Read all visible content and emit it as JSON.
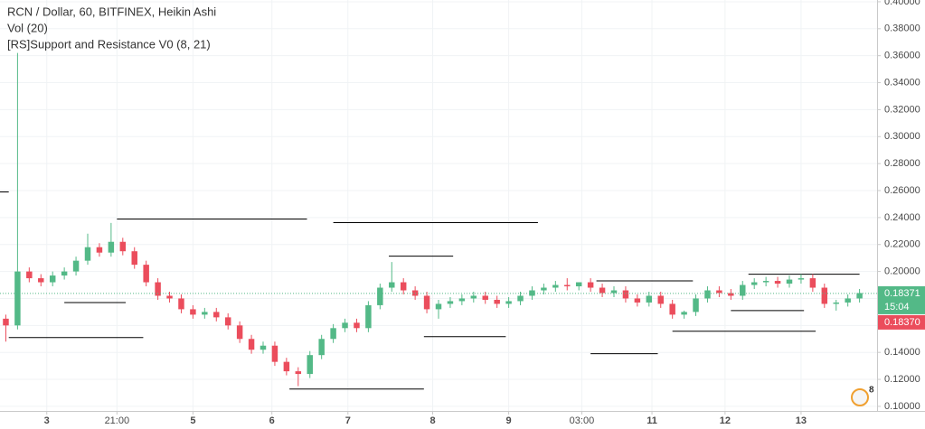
{
  "chart_data": {
    "type": "candlestick",
    "title": "RCN / Dollar, 60, BITFINEX, Heikin Ashi",
    "indicators": [
      "Vol (20)",
      "[RS]Support and Resistance V0 (8, 21)"
    ],
    "x": [
      2,
      6,
      10,
      14,
      18,
      22,
      26,
      30,
      34,
      38,
      42,
      46,
      50,
      54,
      58,
      62,
      66,
      70,
      74,
      78,
      82,
      86,
      90,
      94,
      98,
      102,
      106,
      110,
      114,
      118,
      122,
      126,
      130,
      134,
      138,
      142,
      146,
      150,
      154,
      158,
      162,
      166,
      170,
      174,
      178,
      182,
      186,
      190,
      194,
      198,
      202,
      206,
      210,
      214,
      218,
      222,
      226,
      230,
      234,
      238,
      242,
      246,
      250,
      254,
      258,
      262,
      266,
      270,
      274,
      278,
      282,
      286,
      290,
      294
    ],
    "open": [
      0.165,
      0.16,
      0.2,
      0.195,
      0.192,
      0.197,
      0.2,
      0.208,
      0.218,
      0.214,
      0.222,
      0.215,
      0.205,
      0.192,
      0.182,
      0.18,
      0.172,
      0.168,
      0.17,
      0.166,
      0.16,
      0.15,
      0.142,
      0.145,
      0.133,
      0.126,
      0.124,
      0.138,
      0.15,
      0.158,
      0.162,
      0.158,
      0.175,
      0.188,
      0.192,
      0.186,
      0.182,
      0.172,
      0.176,
      0.178,
      0.18,
      0.182,
      0.179,
      0.176,
      0.178,
      0.182,
      0.186,
      0.188,
      0.19,
      0.189,
      0.192,
      0.188,
      0.184,
      0.186,
      0.18,
      0.177,
      0.182,
      0.176,
      0.168,
      0.17,
      0.18,
      0.186,
      0.184,
      0.182,
      0.19,
      0.192,
      0.193,
      0.191,
      0.194,
      0.195,
      0.188,
      0.176,
      0.177,
      0.18
    ],
    "high": [
      0.168,
      0.362,
      0.203,
      0.198,
      0.2,
      0.203,
      0.211,
      0.228,
      0.221,
      0.236,
      0.225,
      0.218,
      0.208,
      0.195,
      0.185,
      0.183,
      0.175,
      0.173,
      0.173,
      0.169,
      0.163,
      0.153,
      0.148,
      0.148,
      0.136,
      0.129,
      0.141,
      0.153,
      0.161,
      0.165,
      0.165,
      0.178,
      0.191,
      0.207,
      0.195,
      0.189,
      0.185,
      0.179,
      0.181,
      0.183,
      0.185,
      0.185,
      0.182,
      0.181,
      0.185,
      0.189,
      0.191,
      0.193,
      0.195,
      0.192,
      0.195,
      0.191,
      0.189,
      0.189,
      0.183,
      0.185,
      0.185,
      0.179,
      0.171,
      0.183,
      0.189,
      0.189,
      0.187,
      0.193,
      0.195,
      0.196,
      0.196,
      0.197,
      0.198,
      0.198,
      0.191,
      0.179,
      0.183,
      0.187
    ],
    "low": [
      0.148,
      0.157,
      0.192,
      0.189,
      0.189,
      0.194,
      0.197,
      0.205,
      0.211,
      0.211,
      0.212,
      0.202,
      0.189,
      0.179,
      0.177,
      0.169,
      0.165,
      0.165,
      0.163,
      0.157,
      0.147,
      0.139,
      0.139,
      0.13,
      0.123,
      0.115,
      0.121,
      0.135,
      0.147,
      0.155,
      0.155,
      0.155,
      0.172,
      0.185,
      0.183,
      0.179,
      0.169,
      0.165,
      0.173,
      0.175,
      0.177,
      0.176,
      0.173,
      0.173,
      0.175,
      0.179,
      0.183,
      0.185,
      0.186,
      0.186,
      0.185,
      0.181,
      0.181,
      0.177,
      0.174,
      0.174,
      0.173,
      0.165,
      0.165,
      0.167,
      0.177,
      0.181,
      0.179,
      0.179,
      0.187,
      0.189,
      0.188,
      0.188,
      0.191,
      0.185,
      0.173,
      0.171,
      0.174,
      0.177
    ],
    "close": [
      0.16,
      0.2,
      0.195,
      0.192,
      0.197,
      0.2,
      0.208,
      0.218,
      0.214,
      0.222,
      0.215,
      0.205,
      0.192,
      0.182,
      0.18,
      0.172,
      0.168,
      0.17,
      0.166,
      0.16,
      0.15,
      0.142,
      0.145,
      0.133,
      0.126,
      0.124,
      0.138,
      0.15,
      0.158,
      0.162,
      0.158,
      0.175,
      0.188,
      0.192,
      0.186,
      0.182,
      0.172,
      0.176,
      0.178,
      0.18,
      0.182,
      0.179,
      0.176,
      0.178,
      0.182,
      0.186,
      0.188,
      0.19,
      0.189,
      0.192,
      0.188,
      0.184,
      0.186,
      0.18,
      0.177,
      0.182,
      0.176,
      0.168,
      0.17,
      0.18,
      0.186,
      0.184,
      0.182,
      0.19,
      0.192,
      0.193,
      0.191,
      0.194,
      0.195,
      0.188,
      0.176,
      0.177,
      0.18,
      0.184
    ],
    "up_color": "#53b987",
    "down_color": "#eb4d5c",
    "levels": [
      {
        "x": [
          40,
          105
        ],
        "value": 0.2389
      },
      {
        "x": [
          114,
          184
        ],
        "value": 0.2362
      },
      {
        "x": [
          133,
          155
        ],
        "value": 0.2114
      },
      {
        "x": [
          204,
          237
        ],
        "value": 0.193
      },
      {
        "x": [
          256,
          294
        ],
        "value": 0.198
      },
      {
        "x": [
          3,
          49
        ],
        "value": 0.151
      },
      {
        "x": [
          22,
          43
        ],
        "value": 0.177
      },
      {
        "x": [
          145,
          173
        ],
        "value": 0.1517
      },
      {
        "x": [
          202,
          225
        ],
        "value": 0.139
      },
      {
        "x": [
          230,
          279
        ],
        "value": 0.1557
      },
      {
        "x": [
          99,
          145
        ],
        "value": 0.1128
      },
      {
        "x": [
          250,
          275
        ],
        "value": 0.171
      },
      {
        "x": [
          0,
          3
        ],
        "value": 0.259
      }
    ],
    "last_price": {
      "value": 0.18371,
      "label": "0.18371"
    },
    "countdown": "15:04",
    "close_price": {
      "value": 0.1837,
      "label": "0.18370"
    },
    "badge": "8",
    "xlim": [
      0,
      300
    ],
    "xticks": [
      {
        "value": 16,
        "label": "3"
      },
      {
        "value": 40,
        "label": "21:00"
      },
      {
        "value": 66,
        "label": "5"
      },
      {
        "value": 93,
        "label": "6"
      },
      {
        "value": 119,
        "label": "7"
      },
      {
        "value": 148,
        "label": "8"
      },
      {
        "value": 174,
        "label": "9"
      },
      {
        "value": 199,
        "label": "03:00"
      },
      {
        "value": 223,
        "label": "11"
      },
      {
        "value": 248,
        "label": "12"
      },
      {
        "value": 274,
        "label": "13"
      }
    ],
    "ylim": [
      0.0966,
      0.4013
    ],
    "yticks": [
      {
        "value": 0.1,
        "label": "0.10000"
      },
      {
        "value": 0.12,
        "label": "0.12000"
      },
      {
        "value": 0.14,
        "label": "0.14000"
      },
      {
        "value": 0.16,
        "label": "0.16000"
      },
      {
        "value": 0.18,
        "label": "0.18000"
      },
      {
        "value": 0.2,
        "label": "0.20000"
      },
      {
        "value": 0.22,
        "label": "0.22000"
      },
      {
        "value": 0.24,
        "label": "0.24000"
      },
      {
        "value": 0.26,
        "label": "0.26000"
      },
      {
        "value": 0.28,
        "label": "0.28000"
      },
      {
        "value": 0.3,
        "label": "0.30000"
      },
      {
        "value": 0.32,
        "label": "0.32000"
      },
      {
        "value": 0.34,
        "label": "0.34000"
      },
      {
        "value": 0.36,
        "label": "0.36000"
      },
      {
        "value": 0.38,
        "label": "0.38000"
      },
      {
        "value": 0.4,
        "label": "0.40000"
      }
    ],
    "grid": true
  }
}
